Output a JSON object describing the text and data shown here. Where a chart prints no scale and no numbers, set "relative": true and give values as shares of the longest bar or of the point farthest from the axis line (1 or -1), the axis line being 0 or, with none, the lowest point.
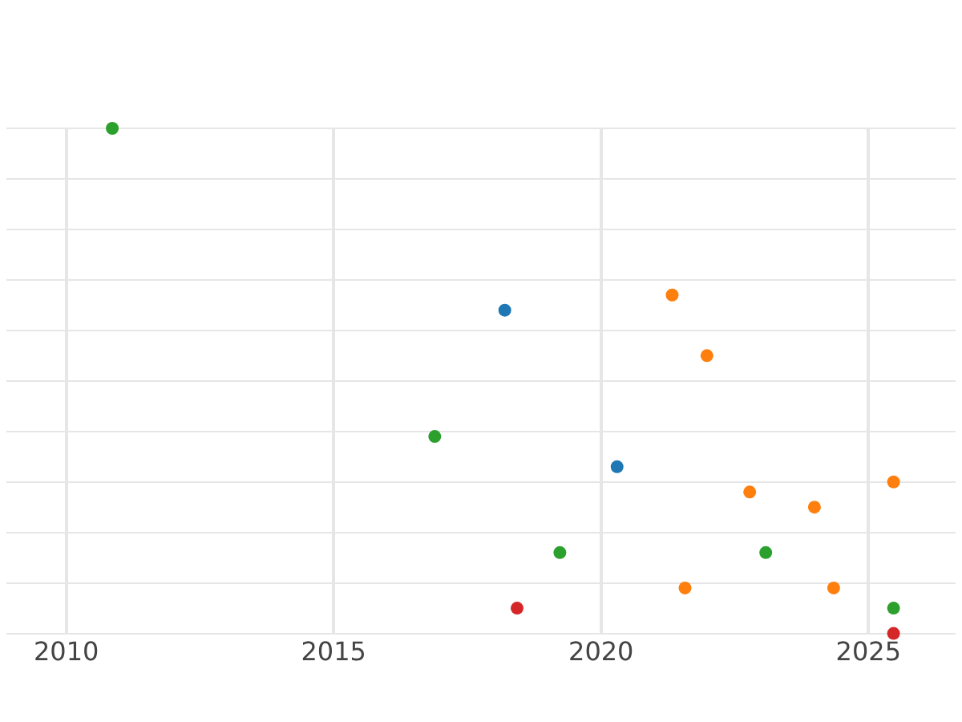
{
  "chart_data": {
    "type": "scatter",
    "relative": true,
    "grid": true,
    "legend": false,
    "marker": "circle",
    "xlim": [
      2008.88,
      2026.63
    ],
    "xticks": [
      2010,
      2015,
      2020,
      2025
    ],
    "series": [
      {
        "color": "#2ca02c",
        "x": [
          2010.86,
          2016.89,
          2019.23,
          2023.08,
          2025.47
        ],
        "values": [
          1,
          0.39,
          0.16,
          0.16,
          0.05
        ]
      },
      {
        "color": "#1f77b4",
        "x": [
          2018.2,
          2020.3
        ],
        "values": [
          0.64,
          0.33
        ]
      },
      {
        "color": "#ff7f0e",
        "x": [
          2021.33,
          2021.98,
          2022.78,
          2023.99,
          2025.47,
          2021.57,
          2024.35
        ],
        "values": [
          0.67,
          0.55,
          0.28,
          0.25,
          0.3,
          0.09,
          0.09
        ]
      },
      {
        "color": "#d62728",
        "x": [
          2018.43,
          2025.47
        ],
        "values": [
          0.05,
          0
        ]
      }
    ]
  }
}
